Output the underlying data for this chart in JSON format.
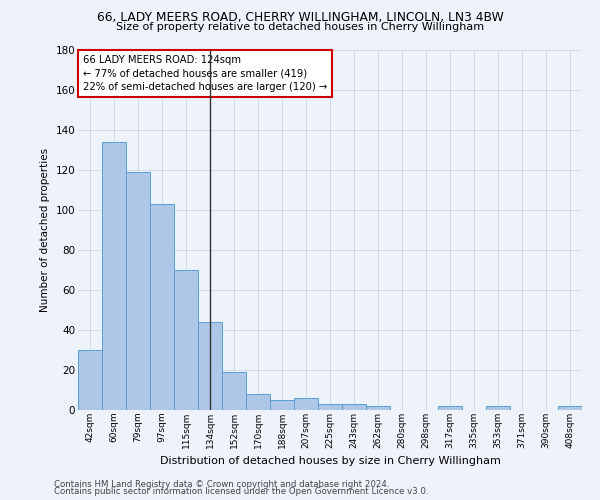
{
  "title1": "66, LADY MEERS ROAD, CHERRY WILLINGHAM, LINCOLN, LN3 4BW",
  "title2": "Size of property relative to detached houses in Cherry Willingham",
  "xlabel": "Distribution of detached houses by size in Cherry Willingham",
  "ylabel": "Number of detached properties",
  "footer1": "Contains HM Land Registry data © Crown copyright and database right 2024.",
  "footer2": "Contains public sector information licensed under the Open Government Licence v3.0.",
  "bar_labels": [
    "42sqm",
    "60sqm",
    "79sqm",
    "97sqm",
    "115sqm",
    "134sqm",
    "152sqm",
    "170sqm",
    "188sqm",
    "207sqm",
    "225sqm",
    "243sqm",
    "262sqm",
    "280sqm",
    "298sqm",
    "317sqm",
    "335sqm",
    "353sqm",
    "371sqm",
    "390sqm",
    "408sqm"
  ],
  "bar_values": [
    30,
    134,
    119,
    103,
    70,
    44,
    19,
    8,
    5,
    6,
    3,
    3,
    2,
    0,
    0,
    2,
    0,
    2,
    0,
    0,
    2
  ],
  "bar_color": "#aec6e8",
  "bar_edge_color": "#5a9fd4",
  "highlight_bar_index": 5,
  "highlight_line_color": "#333333",
  "ylim": [
    0,
    180
  ],
  "yticks": [
    0,
    20,
    40,
    60,
    80,
    100,
    120,
    140,
    160,
    180
  ],
  "annotation_line1": "66 LADY MEERS ROAD: 124sqm",
  "annotation_line2": "← 77% of detached houses are smaller (419)",
  "annotation_line3": "22% of semi-detached houses are larger (120) →",
  "annotation_box_color": "#ffffff",
  "annotation_box_edge_color": "#cc0000",
  "bg_color": "#eef2fa",
  "grid_color": "#c8cfe0"
}
